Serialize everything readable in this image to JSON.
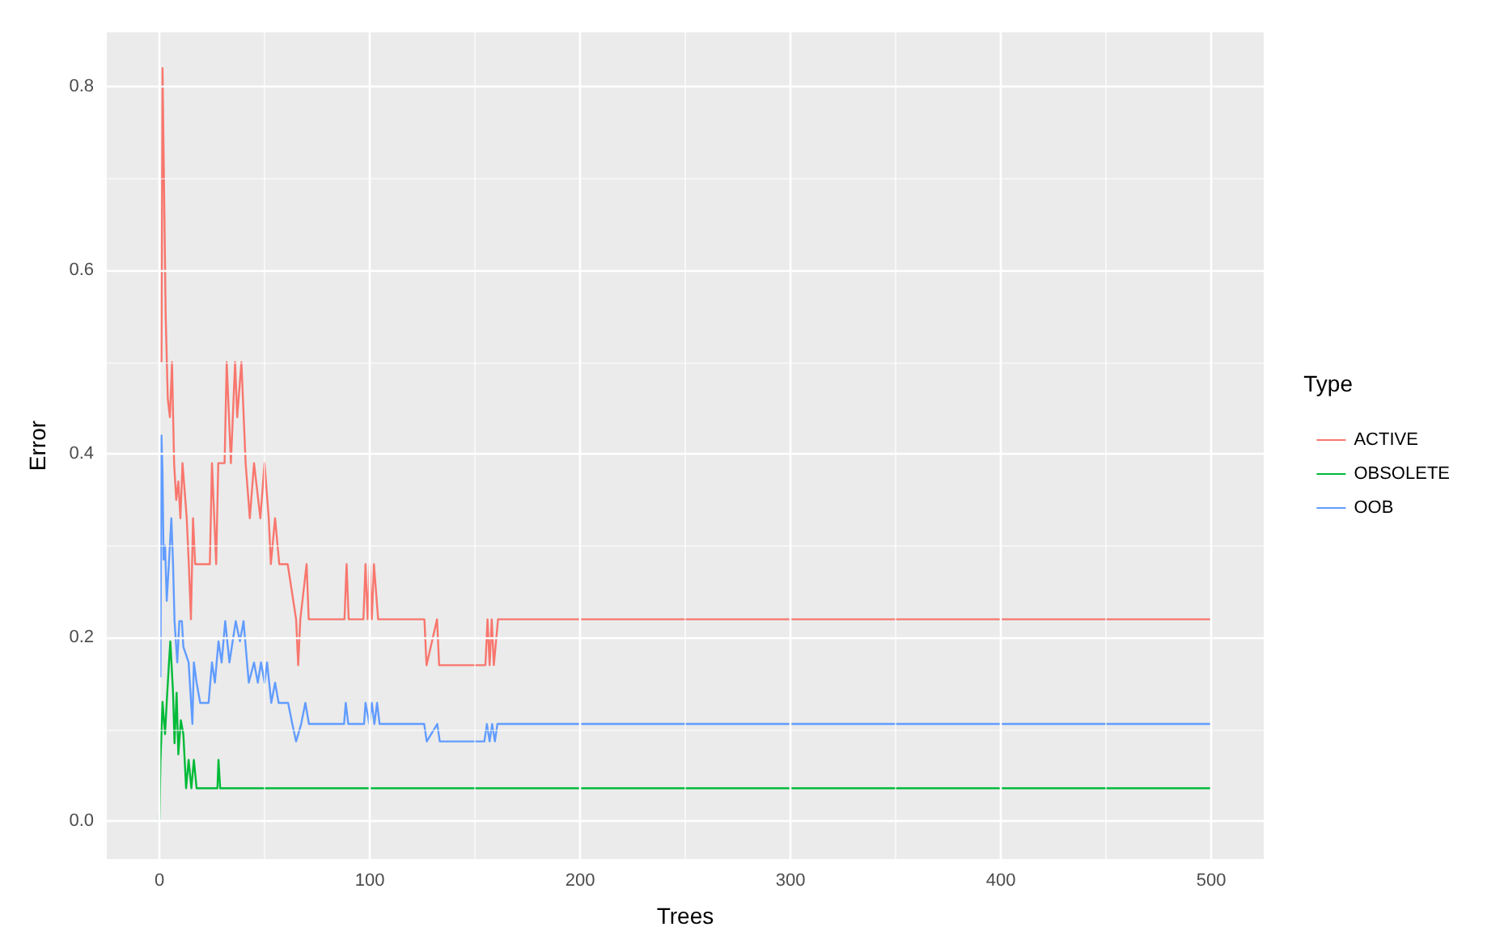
{
  "chart_data": {
    "type": "line",
    "xlabel": "Trees",
    "ylabel": "Error",
    "legend_title": "Type",
    "legend": "right",
    "grid": true,
    "marker": "none",
    "line_style": "solid",
    "xlim": [
      -25,
      525
    ],
    "xticks": [
      0,
      100,
      200,
      300,
      400,
      500
    ],
    "ylim": [
      -0.041,
      0.859
    ],
    "yticks": [
      {
        "value": 0,
        "label": "0.0"
      },
      {
        "value": 0.2,
        "label": "0.2"
      },
      {
        "value": 0.4,
        "label": "0.4"
      },
      {
        "value": 0.6,
        "label": "0.6"
      },
      {
        "value": 0.8,
        "label": "0.8"
      }
    ],
    "series": [
      {
        "name": "ACTIVE",
        "color": "#f8766d",
        "x": [
          1,
          1.5,
          2,
          3,
          4,
          5,
          6,
          7,
          8,
          9,
          10,
          11,
          13,
          14,
          15,
          16,
          17,
          18,
          24,
          25,
          27,
          28,
          31,
          32,
          34,
          36,
          37,
          39,
          41,
          43,
          45,
          48,
          50,
          52,
          53,
          55,
          57,
          61,
          65,
          66,
          67,
          70,
          71,
          88,
          89,
          90,
          97,
          98,
          99,
          100,
          101,
          102,
          104,
          126,
          127,
          132,
          133,
          155,
          156,
          157,
          158,
          159,
          161,
          500
        ],
        "values": [
          0.5,
          0.82,
          0.73,
          0.55,
          0.46,
          0.44,
          0.5,
          0.39,
          0.35,
          0.37,
          0.33,
          0.39,
          0.33,
          0.28,
          0.22,
          0.33,
          0.28,
          0.28,
          0.28,
          0.39,
          0.28,
          0.39,
          0.39,
          0.5,
          0.39,
          0.5,
          0.44,
          0.5,
          0.39,
          0.33,
          0.39,
          0.33,
          0.39,
          0.33,
          0.28,
          0.33,
          0.28,
          0.28,
          0.22,
          0.17,
          0.22,
          0.28,
          0.22,
          0.22,
          0.28,
          0.22,
          0.22,
          0.28,
          0.22,
          0.28,
          0.22,
          0.28,
          0.22,
          0.22,
          0.17,
          0.22,
          0.17,
          0.17,
          0.22,
          0.17,
          0.22,
          0.17,
          0.22,
          0.22
        ]
      },
      {
        "name": "OBSOLETE",
        "color": "#00ba38",
        "x": [
          0,
          0.5,
          1.5,
          2.7,
          3.5,
          4.5,
          5.2,
          6.5,
          7.2,
          8.2,
          9,
          10.2,
          11.4,
          12.7,
          13.9,
          15.2,
          16.4,
          17.7,
          27.6,
          28.1,
          28.9,
          500
        ],
        "values": [
          0,
          0.064,
          0.13,
          0.095,
          0.13,
          0.17,
          0.196,
          0.14,
          0.085,
          0.14,
          0.073,
          0.11,
          0.095,
          0.036,
          0.067,
          0.036,
          0.067,
          0.036,
          0.036,
          0.067,
          0.036,
          0.036
        ]
      },
      {
        "name": "OOB",
        "color": "#619cff",
        "x": [
          0.5,
          1,
          1.5,
          2,
          2.7,
          3.5,
          4.5,
          5.7,
          6.5,
          7.2,
          8.5,
          9.5,
          10.7,
          11.4,
          13.9,
          15.7,
          16.4,
          17.7,
          19.4,
          23.4,
          25,
          26.4,
          28.1,
          29.6,
          31.3,
          33.3,
          36.3,
          38.3,
          40,
          42.5,
          45,
          46.8,
          48.3,
          50,
          51.2,
          53.2,
          55,
          56.7,
          61.2,
          63.2,
          65,
          67.4,
          69.4,
          71.1,
          87.8,
          88.6,
          89.8,
          97.3,
          98,
          99.8,
          101,
          102.2,
          103.5,
          104.7,
          125.9,
          127.1,
          132.1,
          133.3,
          154.5,
          155.7,
          157,
          158.2,
          159.5,
          160.7,
          500
        ],
        "values": [
          0.157,
          0.42,
          0.38,
          0.285,
          0.3,
          0.24,
          0.28,
          0.33,
          0.28,
          0.218,
          0.173,
          0.218,
          0.218,
          0.19,
          0.173,
          0.106,
          0.173,
          0.151,
          0.129,
          0.129,
          0.173,
          0.151,
          0.196,
          0.173,
          0.218,
          0.173,
          0.218,
          0.196,
          0.218,
          0.151,
          0.173,
          0.151,
          0.173,
          0.151,
          0.173,
          0.129,
          0.151,
          0.129,
          0.129,
          0.106,
          0.087,
          0.106,
          0.129,
          0.106,
          0.106,
          0.129,
          0.106,
          0.106,
          0.129,
          0.106,
          0.129,
          0.106,
          0.129,
          0.106,
          0.106,
          0.087,
          0.106,
          0.087,
          0.087,
          0.106,
          0.087,
          0.106,
          0.087,
          0.106,
          0.106
        ]
      }
    ]
  }
}
